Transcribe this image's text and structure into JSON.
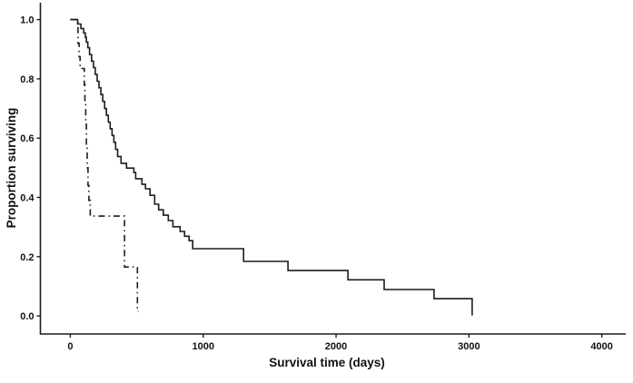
{
  "figure": {
    "background": "#ffffff",
    "line_color": "#1c1c1c",
    "text_color": "#111111"
  },
  "chart_data": {
    "type": "line",
    "subtype": "kaplan-meier-step",
    "title": "",
    "xlabel": "Survival time (days)",
    "ylabel": "Proportion surviving",
    "xlim": [
      -225,
      4180
    ],
    "ylim": [
      -0.061,
      1.057
    ],
    "grid": false,
    "legend_position": "none",
    "x_ticks": {
      "values": [
        0,
        1000,
        2000,
        3000,
        4000
      ],
      "labels": [
        "0",
        "1000",
        "2000",
        "3000",
        "4000"
      ]
    },
    "y_ticks": {
      "values": [
        0.0,
        0.2,
        0.4,
        0.6,
        0.8,
        1.0
      ],
      "labels": [
        "0.0",
        "0.2",
        "0.4",
        "0.6",
        "0.8",
        "1.0"
      ]
    },
    "series": [
      {
        "name": "group-solid",
        "style": "solid",
        "end_time": 3030,
        "points": [
          [
            0,
            1.0
          ],
          [
            55,
            0.985
          ],
          [
            80,
            0.97
          ],
          [
            100,
            0.955
          ],
          [
            113,
            0.94
          ],
          [
            121,
            0.924
          ],
          [
            132,
            0.905
          ],
          [
            145,
            0.882
          ],
          [
            160,
            0.86
          ],
          [
            174,
            0.838
          ],
          [
            188,
            0.815
          ],
          [
            202,
            0.792
          ],
          [
            216,
            0.77
          ],
          [
            230,
            0.747
          ],
          [
            244,
            0.724
          ],
          [
            258,
            0.7
          ],
          [
            272,
            0.677
          ],
          [
            286,
            0.654
          ],
          [
            300,
            0.632
          ],
          [
            314,
            0.609
          ],
          [
            328,
            0.586
          ],
          [
            341,
            0.562
          ],
          [
            356,
            0.538
          ],
          [
            382,
            0.515
          ],
          [
            423,
            0.499
          ],
          [
            478,
            0.484
          ],
          [
            492,
            0.463
          ],
          [
            539,
            0.444
          ],
          [
            566,
            0.429
          ],
          [
            600,
            0.407
          ],
          [
            635,
            0.377
          ],
          [
            665,
            0.358
          ],
          [
            700,
            0.34
          ],
          [
            737,
            0.322
          ],
          [
            772,
            0.301
          ],
          [
            826,
            0.285
          ],
          [
            860,
            0.269
          ],
          [
            894,
            0.254
          ],
          [
            921,
            0.227
          ],
          [
            1304,
            0.184
          ],
          [
            1638,
            0.153
          ],
          [
            2089,
            0.122
          ],
          [
            2362,
            0.089
          ],
          [
            2737,
            0.058
          ],
          [
            3024,
            0.004
          ]
        ]
      },
      {
        "name": "group-dash-dot",
        "style": "dash-dot",
        "end_time": 512,
        "points": [
          [
            0,
            1.0
          ],
          [
            58,
            0.92
          ],
          [
            66,
            0.875
          ],
          [
            74,
            0.835
          ],
          [
            105,
            0.78
          ],
          [
            110,
            0.72
          ],
          [
            116,
            0.65
          ],
          [
            121,
            0.58
          ],
          [
            127,
            0.5
          ],
          [
            133,
            0.44
          ],
          [
            140,
            0.39
          ],
          [
            150,
            0.337
          ],
          [
            408,
            0.165
          ],
          [
            505,
            0.015
          ]
        ]
      }
    ]
  }
}
